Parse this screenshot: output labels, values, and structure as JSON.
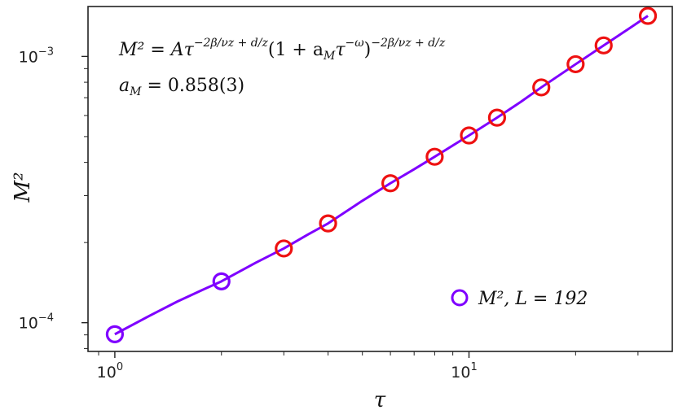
{
  "chart_data": {
    "type": "scatter",
    "xscale": "log",
    "yscale": "log",
    "xlim": [
      0.84,
      37.5
    ],
    "ylim": [
      7.8e-05,
      0.00154
    ],
    "xlabel": "τ",
    "ylabel": "M²",
    "x_ticks": [
      {
        "value": 1,
        "base": "10",
        "exp": "0"
      },
      {
        "value": 10,
        "base": "10",
        "exp": "1"
      }
    ],
    "y_ticks": [
      {
        "value": 0.0001,
        "base": "10",
        "exp": "−4"
      },
      {
        "value": 0.001,
        "base": "10",
        "exp": "−3"
      }
    ],
    "annotation": {
      "formula_lhs": "M² = Aτ",
      "formula_exp1": "−2β/νz + d/z",
      "formula_mid": "(1 + a",
      "formula_sub": "M",
      "formula_tau": "τ",
      "formula_exp_omega": "−ω",
      "formula_close": ")",
      "formula_exp2": "−2β/νz + d/z",
      "param_name": "a",
      "param_sub": "M",
      "param_value": " = 0.858(3)"
    },
    "legend": {
      "label": "M², L = 192",
      "placement": "lower-right"
    },
    "colors": {
      "fit_line": "#7f00ff",
      "marker_edge": "#ee1111",
      "legend_marker": "#7f00ff"
    },
    "fit_line": {
      "x": [
        1,
        1.25,
        1.5,
        1.75,
        2,
        2.5,
        3,
        3.5,
        4,
        5,
        6,
        7,
        8,
        10,
        12,
        14,
        16,
        20,
        24,
        28,
        32
      ],
      "y": [
        9.05e-05,
        0.000106,
        0.00012,
        0.000132,
        0.000143,
        0.000168,
        0.00019,
        0.000214,
        0.000236,
        0.000287,
        0.000334,
        0.000377,
        0.00042,
        0.000505,
        0.000589,
        0.000675,
        0.000765,
        0.000935,
        0.0011,
        0.00126,
        0.00142
      ]
    },
    "series": [
      {
        "x": [
          1,
          2,
          3,
          4,
          6,
          8,
          10,
          12,
          16,
          20,
          24,
          32
        ],
        "y": [
          9.05e-05,
          0.000143,
          0.00019,
          0.000236,
          0.000334,
          0.00042,
          0.000505,
          0.000589,
          0.000765,
          0.000935,
          0.0011,
          0.00142
        ]
      }
    ]
  }
}
